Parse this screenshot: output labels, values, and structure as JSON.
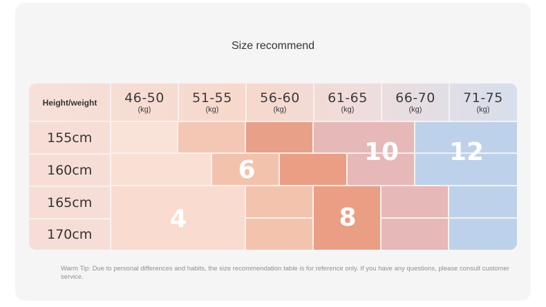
{
  "title": "Size recommend",
  "table": {
    "header_label": "Height/weight",
    "columns": [
      {
        "range": "46-50",
        "unit": "(kg)"
      },
      {
        "range": "51-55",
        "unit": "(kg)"
      },
      {
        "range": "56-60",
        "unit": "(kg)"
      },
      {
        "range": "61-65",
        "unit": "(kg)"
      },
      {
        "range": "66-70",
        "unit": "(kg)"
      },
      {
        "range": "71-75",
        "unit": "(kg)"
      }
    ],
    "rows": [
      "155cm",
      "160cm",
      "165cm",
      "170cm"
    ],
    "sizes": [
      "4",
      "6",
      "8",
      "10",
      "12"
    ]
  },
  "colors": {
    "header_bg": "#f4dcd6",
    "size4": "#f8ddd0",
    "size6": "#f4c7b4",
    "size8": "#ea9f85",
    "size10": "#e7b8b8",
    "size12": "#bdd2ea"
  },
  "tip": "Warm Tip: Due to personal differences and habits, the size recommendation table is for reference only. If you have any questions, please consult customer service."
}
